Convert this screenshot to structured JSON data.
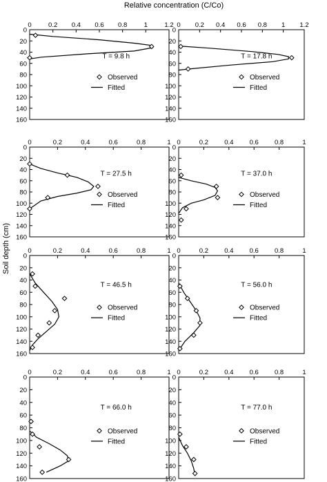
{
  "figure": {
    "xlabel": "Relative concentration (C/Co)",
    "ylabel": "Soil depth (cm)"
  },
  "legend": {
    "observed": "Observed",
    "fitted": "Fitted"
  },
  "chart_data": [
    {
      "type": "scatter",
      "time_label": "T = 9.8 h",
      "xlim": [
        0,
        1.2
      ],
      "ylim": [
        0,
        160
      ],
      "y_inverted": true,
      "x_ticks": [
        "0",
        "0.2",
        "0.4",
        "0.6",
        "0.8",
        "1",
        "1.2"
      ],
      "y_ticks": [
        "0",
        "20",
        "40",
        "60",
        "80",
        "100",
        "120",
        "140",
        "160"
      ],
      "series": [
        {
          "name": "Observed",
          "kind": "points",
          "x": [
            0.05,
            1.05,
            0.0
          ],
          "y": [
            10,
            30,
            50
          ]
        },
        {
          "name": "Fitted",
          "kind": "line",
          "x": [
            0.0,
            0.2,
            0.6,
            0.9,
            1.05,
            1.06,
            0.9,
            0.5,
            0.1,
            0.0
          ],
          "y": [
            8,
            12,
            18,
            24,
            28,
            32,
            38,
            43,
            49,
            52
          ]
        }
      ]
    },
    {
      "type": "scatter",
      "time_label": "T = 17.8 h",
      "xlim": [
        0,
        1.2
      ],
      "ylim": [
        0,
        160
      ],
      "y_inverted": true,
      "x_ticks": [
        "0",
        "0.2",
        "0.4",
        "0.6",
        "0.8",
        "1",
        "1.2"
      ],
      "y_ticks": [
        "0",
        "20",
        "40",
        "60",
        "80",
        "100",
        "120",
        "140",
        "160"
      ],
      "series": [
        {
          "name": "Observed",
          "kind": "points",
          "x": [
            0.02,
            1.08,
            0.09
          ],
          "y": [
            30,
            50,
            70
          ]
        },
        {
          "name": "Fitted",
          "kind": "line",
          "x": [
            0.0,
            0.3,
            0.7,
            0.95,
            1.05,
            1.05,
            0.9,
            0.5,
            0.15,
            0.0
          ],
          "y": [
            29,
            33,
            39,
            44,
            48,
            52,
            57,
            63,
            69,
            72
          ]
        }
      ]
    },
    {
      "type": "scatter",
      "time_label": "T = 27.5 h",
      "xlim": [
        0,
        1.0
      ],
      "ylim": [
        0,
        160
      ],
      "y_inverted": true,
      "x_ticks": [
        "0",
        "0.2",
        "0.4",
        "0.6",
        "0.8",
        "1"
      ],
      "y_ticks": [
        "0",
        "20",
        "40",
        "60",
        "80",
        "100",
        "120",
        "140",
        "160"
      ],
      "series": [
        {
          "name": "Observed",
          "kind": "points",
          "x": [
            0.0,
            0.27,
            0.49,
            0.13,
            0.0
          ],
          "y": [
            30,
            50,
            70,
            90,
            110
          ]
        },
        {
          "name": "Fitted",
          "kind": "line",
          "x": [
            0.0,
            0.08,
            0.2,
            0.34,
            0.42,
            0.46,
            0.44,
            0.34,
            0.2,
            0.08,
            0.0
          ],
          "y": [
            30,
            38,
            46,
            54,
            62,
            70,
            76,
            82,
            88,
            96,
            110
          ]
        }
      ]
    },
    {
      "type": "scatter",
      "time_label": "T = 37.0 h",
      "xlim": [
        0,
        1.0
      ],
      "ylim": [
        0,
        160
      ],
      "y_inverted": true,
      "x_ticks": [
        "0",
        "0.2",
        "0.4",
        "0.6",
        "0.8",
        "1"
      ],
      "y_ticks": [
        "0",
        "20",
        "40",
        "60",
        "80",
        "100",
        "120",
        "140",
        "160"
      ],
      "series": [
        {
          "name": "Observed",
          "kind": "points",
          "x": [
            0.02,
            0.3,
            0.31,
            0.06,
            0.02
          ],
          "y": [
            50,
            70,
            90,
            110,
            130
          ]
        },
        {
          "name": "Fitted",
          "kind": "line",
          "x": [
            0.0,
            0.1,
            0.22,
            0.29,
            0.31,
            0.29,
            0.2,
            0.1,
            0.03,
            0.0
          ],
          "y": [
            54,
            60,
            66,
            72,
            78,
            86,
            94,
            100,
            108,
            118
          ]
        }
      ]
    },
    {
      "type": "scatter",
      "time_label": "T = 46.5 h",
      "xlim": [
        0,
        1.0
      ],
      "ylim": [
        0,
        160
      ],
      "y_inverted": true,
      "x_ticks": [
        "0",
        "0.2",
        "0.4",
        "0.6",
        "0.8",
        "1"
      ],
      "y_ticks": [
        "0",
        "20",
        "40",
        "60",
        "80",
        "100",
        "120",
        "140",
        "160"
      ],
      "series": [
        {
          "name": "Observed",
          "kind": "points",
          "x": [
            0.02,
            0.04,
            0.25,
            0.18,
            0.14,
            0.06,
            0.02
          ],
          "y": [
            30,
            50,
            70,
            90,
            110,
            130,
            150
          ]
        },
        {
          "name": "Fitted",
          "kind": "line",
          "x": [
            0.0,
            0.04,
            0.1,
            0.16,
            0.2,
            0.21,
            0.18,
            0.12,
            0.06,
            0.02,
            0.0
          ],
          "y": [
            30,
            45,
            60,
            75,
            88,
            100,
            112,
            124,
            136,
            146,
            155
          ]
        }
      ]
    },
    {
      "type": "scatter",
      "time_label": "T = 56.0 h",
      "xlim": [
        0,
        1.0
      ],
      "ylim": [
        0,
        160
      ],
      "y_inverted": true,
      "x_ticks": [
        "0",
        "0.2",
        "0.4",
        "0.6",
        "0.8",
        "1"
      ],
      "y_ticks": [
        "0",
        "20",
        "40",
        "60",
        "80",
        "100",
        "120",
        "140",
        "160"
      ],
      "series": [
        {
          "name": "Observed",
          "kind": "points",
          "x": [
            0.01,
            0.07,
            0.14,
            0.17,
            0.12,
            0.01
          ],
          "y": [
            50,
            70,
            90,
            110,
            130,
            152
          ]
        },
        {
          "name": "Fitted",
          "kind": "line",
          "x": [
            0.0,
            0.04,
            0.09,
            0.14,
            0.17,
            0.17,
            0.12,
            0.05,
            0.0
          ],
          "y": [
            45,
            60,
            75,
            90,
            102,
            114,
            126,
            140,
            155
          ]
        }
      ]
    },
    {
      "type": "scatter",
      "time_label": "T = 66.0 h",
      "xlim": [
        0,
        1.0
      ],
      "ylim": [
        0,
        160
      ],
      "y_inverted": true,
      "x_ticks": [
        "0",
        "0.2",
        "0.4",
        "0.6",
        "0.8",
        "1"
      ],
      "y_ticks": [
        "0",
        "20",
        "40",
        "60",
        "80",
        "100",
        "120",
        "140",
        "160"
      ],
      "series": [
        {
          "name": "Observed",
          "kind": "points",
          "x": [
            0.01,
            0.02,
            0.07,
            0.28,
            0.09
          ],
          "y": [
            70,
            90,
            110,
            130,
            150
          ]
        },
        {
          "name": "Fitted",
          "kind": "line",
          "x": [
            0.0,
            0.05,
            0.14,
            0.22,
            0.27,
            0.28,
            0.22,
            0.12
          ],
          "y": [
            85,
            95,
            105,
            115,
            124,
            132,
            140,
            150
          ]
        }
      ]
    },
    {
      "type": "scatter",
      "time_label": "T = 77.0 h",
      "xlim": [
        0,
        1.0
      ],
      "ylim": [
        0,
        160
      ],
      "y_inverted": true,
      "x_ticks": [
        "0",
        "0.2",
        "0.4",
        "0.6",
        "0.8",
        "1"
      ],
      "y_ticks": [
        "0",
        "20",
        "40",
        "60",
        "80",
        "100",
        "120",
        "140",
        "160"
      ],
      "series": [
        {
          "name": "Observed",
          "kind": "points",
          "x": [
            0.01,
            0.06,
            0.12,
            0.13
          ],
          "y": [
            90,
            110,
            130,
            152
          ]
        },
        {
          "name": "Fitted",
          "kind": "line",
          "x": [
            0.0,
            0.03,
            0.07,
            0.1,
            0.12,
            0.13
          ],
          "y": [
            95,
            108,
            120,
            132,
            144,
            156
          ]
        }
      ]
    }
  ]
}
